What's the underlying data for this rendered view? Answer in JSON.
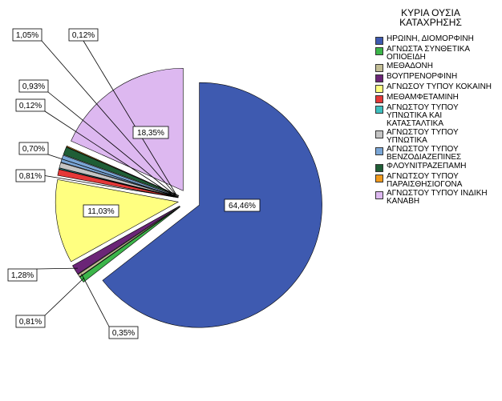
{
  "chart_data": {
    "type": "pie",
    "title": "ΚΥΡΙΑ ΟΥΣΙΑ ΚΑΤΑΧΡΗΣΗΣ",
    "categories": [
      "ΗΡΩΙΝΗ, ΔΙΟΜΟΡΦΙΝΗ",
      "ΑΓΝΩΣΤΑ ΣΥΝΘΕΤΙΚΑ ΟΠΙΟΕΙΔΗ",
      "ΜΕΘΑΔΟΝΗ",
      "ΒΟΥΠΡΕΝΟΡΦΙΝΗ",
      "ΑΓΝΩΣΟΥ ΤΥΠΟΥ ΚΟΚΑΙΝΗ",
      "ΜΕΘΑΜΦΕΤΑΜΙΝΗ",
      "ΑΓΝΩΣΤΟΥ ΤΥΠΟΥ ΥΠΝΩΤΙΚΑ ΚΑΙ ΚΑΤΑΣΤΑΛΤΙΚΑ",
      "ΑΓΝΩΣΤΟΥ ΤΥΠΟΥ ΥΠΝΩΤΙΚΑ",
      "ΑΓΝΩΣΤΟΥ ΤΥΠΟΥ ΒΕΝΖΟΔΙΑΖΕΠΙΝΕΣ",
      "ΦΛΟΥΝΙΤΡΑΖΕΠΑΜΗ",
      "ΑΓΝΩΤΣΟΥ ΤΥΠΟΥ ΠΑΡΑΙΣΘΗΣΙΟΓΟΝΑ",
      "ΑΓΝΩΣΤΟΥ ΤΥΠΟΥ ΙΝΔΙΚΗ ΚΑΝΑΒΗ"
    ],
    "values": [
      64.46,
      0.81,
      0.35,
      1.28,
      11.03,
      0.81,
      0.12,
      0.7,
      0.93,
      1.05,
      0.12,
      18.35
    ],
    "value_labels": [
      "64,46%",
      "0,81%",
      "0,35%",
      "1,28%",
      "11,03%",
      "0,81%",
      "0,12%",
      "0,70%",
      "0,93%",
      "1,05%",
      "0,12%",
      "18,35%"
    ],
    "colors": [
      "#3e5ab0",
      "#3cb54a",
      "#c3be96",
      "#6b2577",
      "#ffff80",
      "#e53838",
      "#3ebfbf",
      "#c4c4c4",
      "#7aa6d6",
      "#1f5e36",
      "#f19a1c",
      "#ddb8f0"
    ],
    "exploded": true,
    "legend_position": "right"
  }
}
